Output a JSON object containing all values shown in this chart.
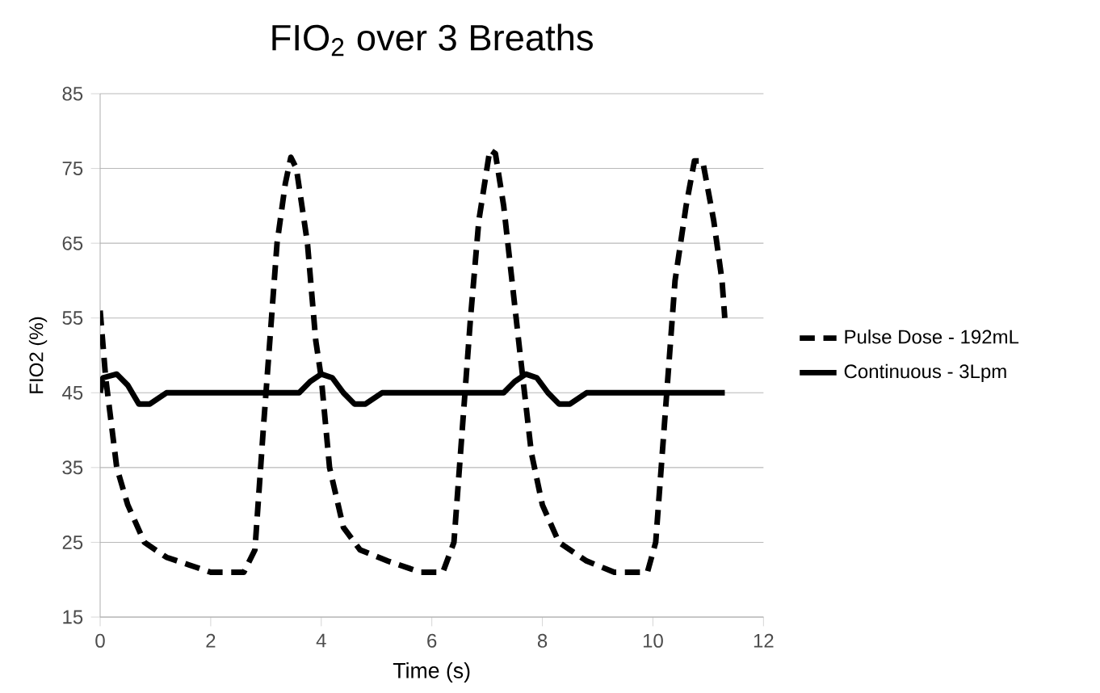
{
  "chart_data": {
    "type": "line",
    "title": "FIO$_{2}$ over 3 Breaths",
    "xlabel": "Time (s)",
    "ylabel": "FIO2 (%)",
    "xlim": [
      0,
      12
    ],
    "xticks": [
      0,
      2,
      4,
      6,
      8,
      10,
      12
    ],
    "ylim": [
      15,
      85
    ],
    "yticks": [
      15,
      25,
      35,
      45,
      55,
      65,
      75,
      85
    ],
    "grid": "y",
    "legend": "right",
    "marker": "none",
    "series": [
      {
        "name": "Pulse Dose - 192mL",
        "color": "#000000",
        "line_style": "dashed",
        "x": [
          0,
          0.1,
          0.3,
          0.5,
          0.8,
          1.2,
          1.6,
          2,
          2.6,
          2.8,
          2.95,
          3.05,
          3.2,
          3.35,
          3.45,
          3.55,
          3.75,
          3.9,
          4,
          4.15,
          4.4,
          4.7,
          5.2,
          5.8,
          6.2,
          6.4,
          6.55,
          6.7,
          6.85,
          7.05,
          7.15,
          7.3,
          7.45,
          7.6,
          7.8,
          8,
          8.3,
          8.8,
          9.3,
          9.9,
          10.05,
          10.25,
          10.4,
          10.6,
          10.75,
          10.9,
          11.1,
          11.25,
          11.3
        ],
        "values": [
          56,
          47,
          35,
          30,
          25,
          23,
          22,
          21,
          21,
          24,
          40,
          50,
          65,
          73,
          76.5,
          75,
          65,
          52,
          47,
          35,
          27,
          24,
          22.5,
          21,
          21,
          25,
          40,
          55,
          68,
          77.5,
          77,
          70,
          60,
          50,
          37,
          30,
          25,
          22.5,
          21,
          21,
          25,
          45,
          60,
          70,
          76,
          76,
          68,
          60,
          55
        ]
      },
      {
        "name": "Continuous - 3Lpm",
        "color": "#000000",
        "line_style": "solid",
        "x": [
          0,
          0.05,
          0.3,
          0.5,
          0.7,
          0.9,
          1.2,
          3.6,
          3.8,
          4,
          4.2,
          4.4,
          4.6,
          4.8,
          5.1,
          7.3,
          7.5,
          7.7,
          7.9,
          8.1,
          8.3,
          8.5,
          8.8,
          11.3
        ],
        "values": [
          45,
          47,
          47.5,
          46,
          43.5,
          43.5,
          45,
          45,
          46.5,
          47.5,
          47,
          45,
          43.5,
          43.5,
          45,
          45,
          46.5,
          47.5,
          47,
          45,
          43.5,
          43.5,
          45,
          45
        ]
      }
    ]
  }
}
